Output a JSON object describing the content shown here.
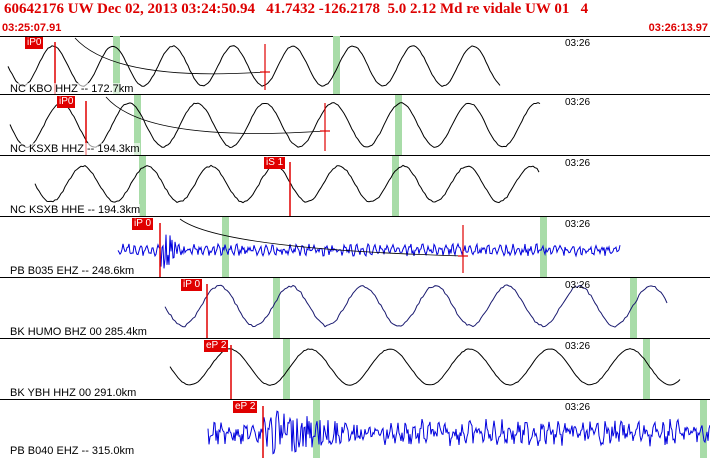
{
  "header": {
    "title": "60642176 UW Dec 02, 2013 03:24:50.94   41.7432 -126.2178  5.0 2.12 Md re vidale UW 01   4",
    "start_time": "03:25:07.91",
    "end_time": "03:26:13.97"
  },
  "colors": {
    "header_text": "#dd0000",
    "pick": "#e00000",
    "trace_black": "#000000",
    "trace_blue": "#0000dd",
    "trace_navy": "#1a1a70",
    "window_marker": "#a8dca8"
  },
  "panels": [
    {
      "label": "NC KBO HHZ -- 172.7km",
      "tick": "03:26",
      "pick": "iP0",
      "trace": "trace-black"
    },
    {
      "label": "NC KSXB HHZ -- 194.3km",
      "tick": "03:26",
      "pick": "iP0",
      "trace": "trace-black"
    },
    {
      "label": "NC KSXB HHE -- 194.3km",
      "tick": "03:26",
      "pick": "iS 1",
      "trace": "trace-black"
    },
    {
      "label": "PB B035 EHZ -- 248.6km",
      "tick": "03:26",
      "pick": "iP 0",
      "trace": "trace-blue"
    },
    {
      "label": "BK HUMO BHZ 00 285.4km",
      "tick": "03:26",
      "pick": "iP 0",
      "trace": "trace-navy"
    },
    {
      "label": "BK YBH HHZ 00 291.0km",
      "tick": "03:26",
      "pick": "eP 2",
      "trace": "trace-black"
    },
    {
      "label": "PB B040 EHZ -- 315.0km",
      "tick": "03:26",
      "pick": "eP 2",
      "trace": "trace-blue"
    }
  ]
}
